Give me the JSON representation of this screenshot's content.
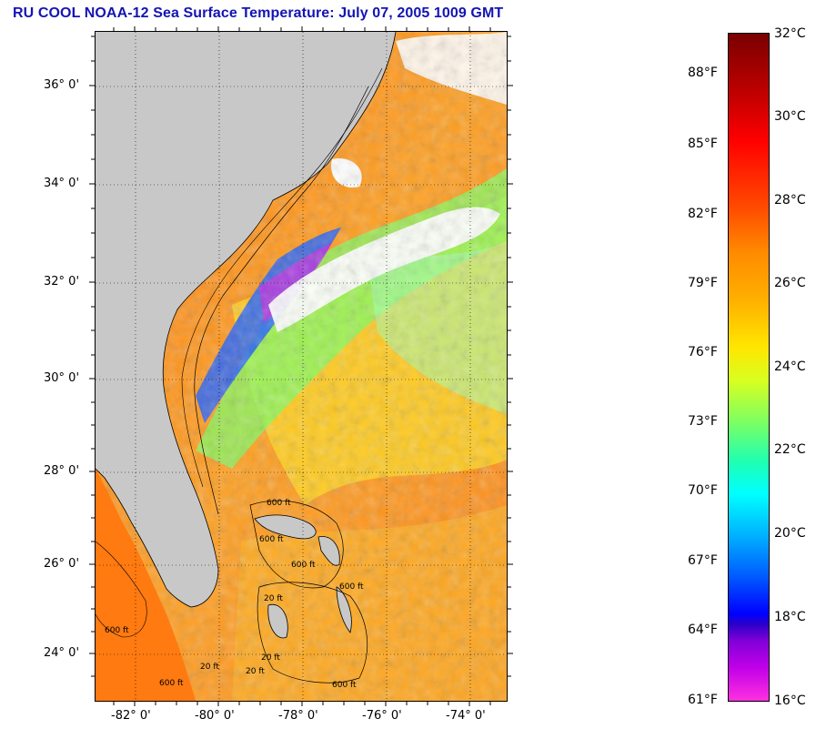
{
  "title": "RU COOL  NOAA-12  Sea Surface Temperature:  July 07, 2005 1009 GMT",
  "map": {
    "longitude_labels": [
      "-82° 0'",
      "-80° 0'",
      "-78° 0'",
      "-76° 0'",
      "-74° 0'"
    ],
    "latitude_labels": [
      "36° 0'",
      "34° 0'",
      "32° 0'",
      "30° 0'",
      "28° 0'",
      "26° 0'",
      "24° 0'"
    ],
    "contour_labels": [
      "600 ft",
      "600 ft",
      "20 ft",
      "600 ft",
      "20 ft",
      "600 ft",
      "20 ft",
      "600 ft",
      "600 ft",
      "20 ft",
      "600 ft"
    ],
    "colors": {
      "land": "#c8c8c8",
      "cloud": "#ffffff",
      "warm_water": "#ff8a1f",
      "cool_water": "#20ffb0",
      "cold_water": "#0000ff"
    }
  },
  "colorbar": {
    "celsius_labels": [
      "32°C",
      "30°C",
      "28°C",
      "26°C",
      "24°C",
      "22°C",
      "20°C",
      "18°C",
      "16°C"
    ],
    "fahrenheit_labels": [
      "88°F",
      "85°F",
      "82°F",
      "79°F",
      "76°F",
      "73°F",
      "70°F",
      "67°F",
      "64°F",
      "61°F"
    ]
  }
}
